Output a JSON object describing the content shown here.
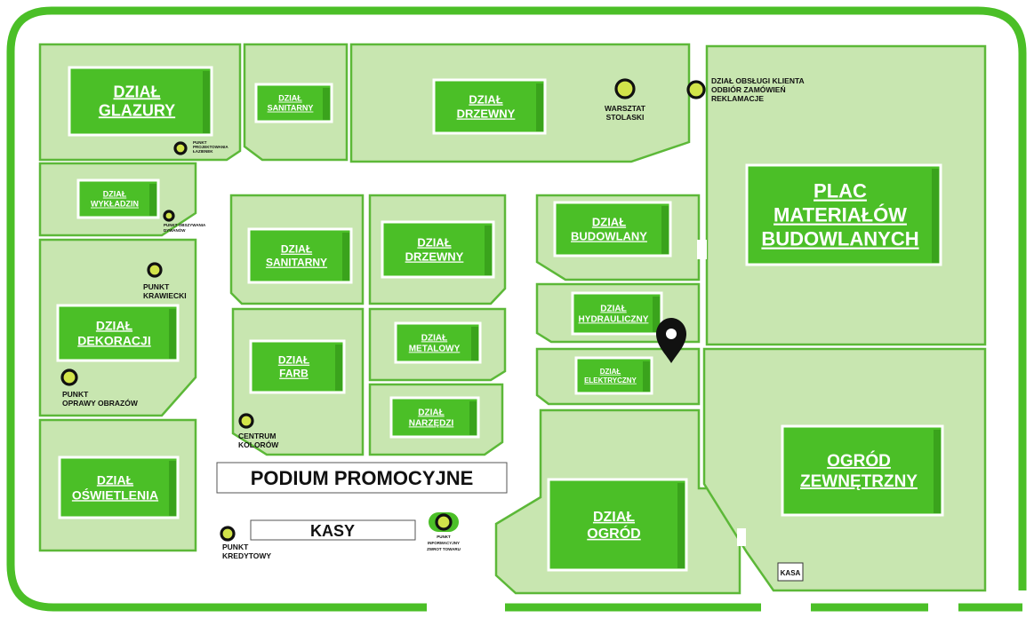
{
  "departments": {
    "glazury": [
      "DZIAŁ",
      "GLAZURY"
    ],
    "sanitarny_top": [
      "DZIAŁ",
      "SANITARNY"
    ],
    "drzewny_top": [
      "DZIAŁ",
      "DRZEWNY"
    ],
    "wykladzin": [
      "DZIAŁ",
      "WYKŁADZIN"
    ],
    "dekoracji": [
      "DZIAŁ",
      "DEKORACJI"
    ],
    "oswietlenia": [
      "DZIAŁ",
      "OŚWIETLENIA"
    ],
    "sanitarny_mid": [
      "DZIAŁ",
      "SANITARNY"
    ],
    "drzewny_mid": [
      "DZIAŁ",
      "DRZEWNY"
    ],
    "farb": [
      "DZIAŁ",
      "FARB"
    ],
    "metalowy": [
      "DZIAŁ",
      "METALOWY"
    ],
    "narzedzi": [
      "DZIAŁ",
      "NARZĘDZI"
    ],
    "budowlany": [
      "DZIAŁ",
      "BUDOWLANY"
    ],
    "hydrauliczny": [
      "DZIAŁ",
      "HYDRAULICZNY"
    ],
    "elektryczny": [
      "DZIAŁ",
      "ELEKTRYCZNY"
    ],
    "ogrod": [
      "DZIAŁ",
      "OGRÓD"
    ],
    "plac": [
      "PLAC",
      "MATERIAŁÓW",
      "BUDOWLANYCH"
    ],
    "ogrod_zewnetrzny": [
      "OGRÓD",
      "ZEWNĘTRZNY"
    ]
  },
  "points": {
    "projektowania": [
      "PUNKT",
      "PROJEKTOWANIA",
      "ŁAZIENEK"
    ],
    "obszywania": [
      "PUNKT OBSZYWANIA",
      "DYWANÓW"
    ],
    "krawiecki": [
      "PUNKT",
      "KRAWIECKI"
    ],
    "oprawy": [
      "PUNKT",
      "OPRAWY OBRAZÓW"
    ],
    "centrum": [
      "CENTRUM",
      "KOLORÓW"
    ],
    "kredytowy": [
      "PUNKT",
      "KREDYTOWY"
    ],
    "informacyjny": [
      "PUNKT",
      "INFORMACYJNY",
      "ZWROT TOWARU"
    ],
    "warsztat": [
      "WARSZTAT",
      "STOLASKI"
    ],
    "obslugi": [
      "DZIAŁ OBSŁUGI KLIENTA",
      "ODBIÓR ZAMÓWIEŃ",
      "REKLAMACJE"
    ]
  },
  "banners": {
    "podium": "PODIUM PROMOCYJNE",
    "kasy": "KASY",
    "kasa": "KASA"
  },
  "icons": {
    "location_pin": "map-pin-icon"
  },
  "colors": {
    "wall": "#4bbf27",
    "area_fill": "#c8e6b0",
    "label_fill": "#4bbf27",
    "poi_fill": "#d2e44a",
    "pin": "#111111"
  }
}
